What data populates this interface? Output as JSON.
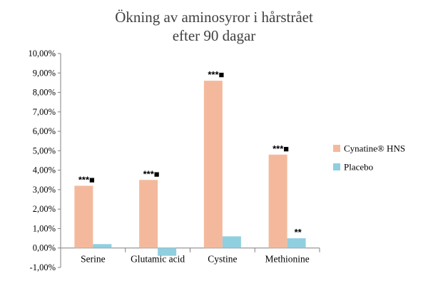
{
  "chart_data": {
    "type": "bar",
    "title_line1": "Ökning av aminosyror i hårstrået",
    "title_line2": "efter 90 dagar",
    "categories": [
      "Serine",
      "Glutamic acid",
      "Cystine",
      "Methionine"
    ],
    "series": [
      {
        "name": "Cynatine® HNS",
        "color": "#F4B99C",
        "values": [
          3.2,
          3.5,
          8.6,
          4.8
        ]
      },
      {
        "name": "Placebo",
        "color": "#8FCFE0",
        "values": [
          0.2,
          -0.4,
          0.6,
          0.5
        ]
      }
    ],
    "ylim": [
      -1,
      10
    ],
    "yticks": [
      "-1,00%",
      "0,00%",
      "1,00%",
      "2,00%",
      "3,00%",
      "4,00%",
      "5,00%",
      "6,00%",
      "7,00%",
      "8,00%",
      "9,00%",
      "10,00%"
    ],
    "annotations": [
      {
        "category": "Serine",
        "series": 0,
        "text": "***■"
      },
      {
        "category": "Glutamic acid",
        "series": 0,
        "text": "***■"
      },
      {
        "category": "Cystine",
        "series": 0,
        "text": "***■"
      },
      {
        "category": "Methionine",
        "series": 0,
        "text": "***■"
      },
      {
        "category": "Methionine",
        "series": 1,
        "text": "**"
      }
    ],
    "grid": false,
    "legend_position": "right"
  }
}
